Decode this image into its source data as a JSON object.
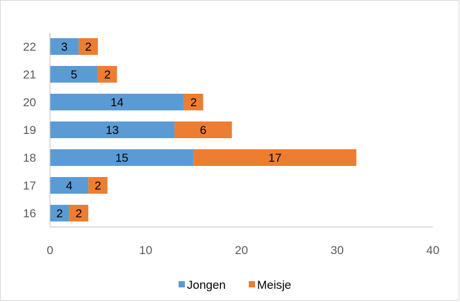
{
  "chart_data": {
    "type": "bar",
    "orientation": "horizontal",
    "stacked": true,
    "categories": [
      "16",
      "17",
      "18",
      "19",
      "20",
      "21",
      "22"
    ],
    "series": [
      {
        "name": "Jongen",
        "color": "#5b9bd5",
        "values": [
          2,
          4,
          15,
          13,
          14,
          5,
          3
        ]
      },
      {
        "name": "Meisje",
        "color": "#ed7d31",
        "values": [
          2,
          2,
          17,
          6,
          2,
          2,
          2
        ]
      }
    ],
    "xlim": [
      0,
      40
    ],
    "xticks": [
      0,
      10,
      20,
      30,
      40
    ],
    "data_labels": true,
    "legend_position": "bottom",
    "grid": false
  }
}
